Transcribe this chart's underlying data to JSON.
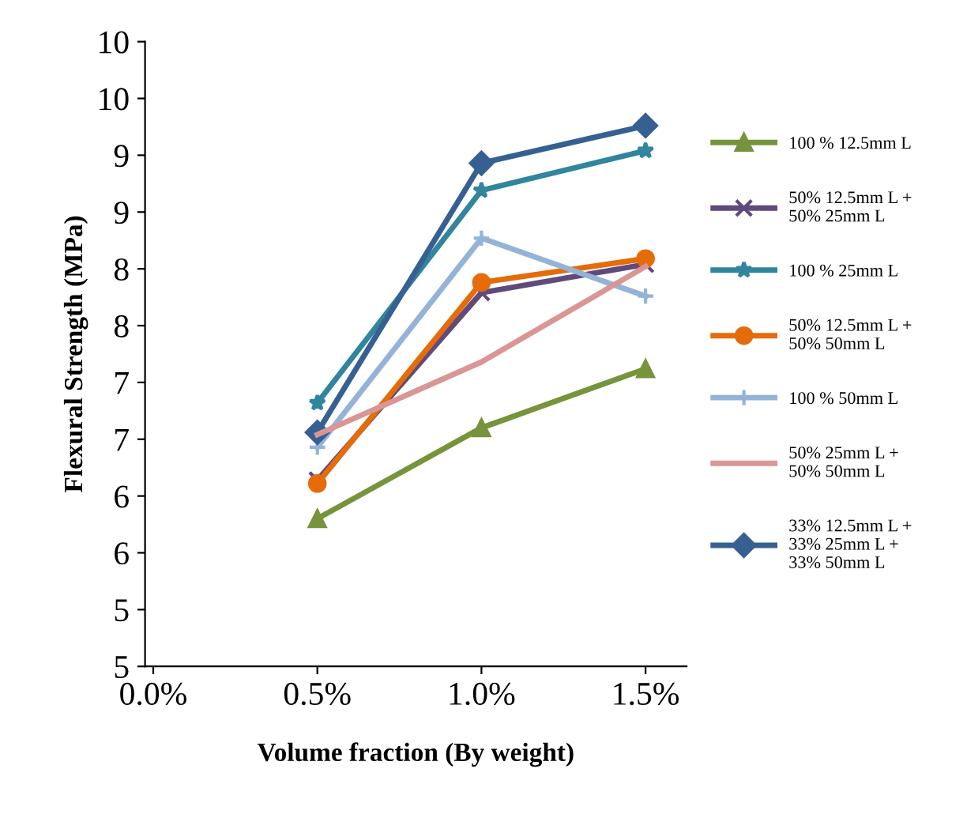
{
  "chart_data": {
    "type": "line",
    "xlabel": "Volume fraction (By weight)",
    "ylabel": "Flexural Strength (MPa)",
    "categories": [
      "0.0%",
      "0.5%",
      "1.0%",
      "1.5%"
    ],
    "ylim": [
      4.5,
      10
    ],
    "yticks": [
      {
        "value": 4.5,
        "label": "5"
      },
      5,
      {
        "value": 5.5,
        "label": "6"
      },
      6,
      {
        "value": 6.5,
        "label": "7"
      },
      7,
      {
        "value": 7.5,
        "label": "8"
      },
      8,
      {
        "value": 8.5,
        "label": "9"
      },
      9,
      {
        "value": 9.5,
        "label": "10"
      },
      10
    ],
    "grid": false,
    "legend": "right",
    "line_style": "solid",
    "series": [
      {
        "name": "100 % 12.5mm L",
        "color": "#77933c",
        "marker": "triangle",
        "values": [
          null,
          5.8,
          6.6,
          7.12
        ]
      },
      {
        "name": "50% 12.5mm L +\n50% 25mm L",
        "color": "#604a7b",
        "marker": "cross",
        "values": [
          null,
          6.14,
          7.79,
          8.04
        ]
      },
      {
        "name": "100 % 25mm L",
        "color": "#31859c",
        "marker": "star",
        "values": [
          null,
          6.82,
          8.69,
          9.04
        ]
      },
      {
        "name": "50% 12.5mm L +\n50% 50mm L",
        "color": "#e46c0a",
        "marker": "circle",
        "values": [
          null,
          6.11,
          7.88,
          8.09
        ]
      },
      {
        "name": "100 % 50mm L",
        "color": "#95b3d7",
        "marker": "plus",
        "values": [
          null,
          6.43,
          8.27,
          7.76
        ]
      },
      {
        "name": "50% 25mm L +\n50% 50mm L",
        "color": "#d99694",
        "marker": "none",
        "values": [
          null,
          6.54,
          7.18,
          8.02
        ]
      },
      {
        "name": "33% 12.5mm L +\n33% 25mm L +\n33% 50mm L",
        "color": "#376092",
        "marker": "diamond",
        "values": [
          null,
          6.56,
          8.93,
          9.26
        ]
      }
    ]
  }
}
